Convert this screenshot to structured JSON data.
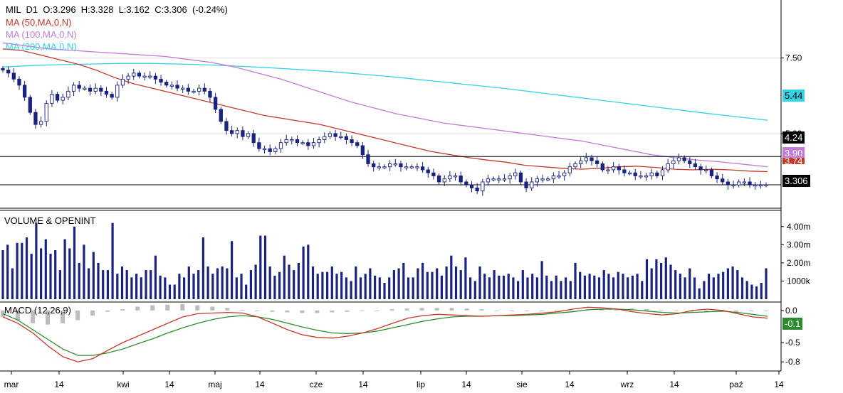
{
  "header": {
    "symbol": "MIL",
    "timeframe": "D1",
    "open": "O:3.296",
    "high": "H:3.328",
    "low": "L:3.162",
    "close": "C:3.306",
    "change": "(-0.24%)"
  },
  "indicators": [
    {
      "label": "MA (50,MA,0,N)",
      "color": "#c0392b"
    },
    {
      "label": "MA (100,MA,0,N)",
      "color": "#c27bd6"
    },
    {
      "label": "MA (200,MA,0,N)",
      "color": "#34d3e6"
    }
  ],
  "badges": {
    "ma200": "5.44",
    "hline_upper": "4.24",
    "ma100": "3.90",
    "ma50": "3.74",
    "last": "3.306",
    "macd": "-0.1"
  },
  "colors": {
    "candle": "#1a237e",
    "volume": "#1a237e",
    "ma50": "#c0392b",
    "ma100": "#c27bd6",
    "ma200": "#34d3e6",
    "macd": "#c0392b",
    "signal": "#2e8b2e",
    "hist": "#bdbdbd",
    "grid": "#e0e0e0"
  },
  "chart_data": {
    "type": "candlestick",
    "price_axis": {
      "ticks": [
        "7.50",
        "5.00"
      ],
      "ylim": [
        2.6,
        9.3
      ]
    },
    "volume_axis": {
      "ticks": [
        "4.00m",
        "3.00m",
        "2.00m",
        "1000k"
      ],
      "ylim": [
        0,
        4.5
      ]
    },
    "macd_axis": {
      "ticks": [
        "0.0",
        "-0.5",
        "-0.8"
      ],
      "ylim": [
        -0.92,
        0.12
      ]
    },
    "x_labels": [
      "mar",
      "14",
      "kwi",
      "14",
      "maj",
      "14",
      "cze",
      "14",
      "lip",
      "14",
      "sie",
      "14",
      "wrz",
      "14",
      "paź",
      "14"
    ],
    "horizontal_lines": [
      4.24,
      3.306
    ],
    "panels": {
      "volume_title": "VOLUME & OPENINT",
      "macd_title": "MACD (12,26,9)"
    },
    "close_series": [
      7.1,
      7.0,
      6.8,
      6.6,
      6.2,
      5.7,
      5.3,
      5.4,
      6.0,
      6.3,
      6.1,
      6.2,
      6.4,
      6.6,
      6.5,
      6.5,
      6.4,
      6.5,
      6.4,
      6.3,
      6.2,
      6.6,
      6.8,
      6.9,
      7.0,
      6.9,
      6.9,
      6.9,
      6.8,
      6.7,
      6.6,
      6.6,
      6.5,
      6.5,
      6.4,
      6.4,
      6.5,
      6.4,
      6.2,
      5.8,
      5.4,
      5.1,
      5.0,
      5.1,
      4.9,
      5.0,
      4.7,
      4.5,
      4.5,
      4.4,
      4.5,
      4.7,
      4.8,
      4.8,
      4.7,
      4.7,
      4.6,
      4.7,
      4.8,
      4.9,
      5.0,
      4.9,
      4.9,
      4.8,
      4.7,
      4.6,
      4.3,
      4.0,
      3.9,
      3.9,
      3.9,
      4.0,
      4.0,
      3.9,
      3.9,
      3.9,
      3.9,
      3.8,
      3.7,
      3.6,
      3.4,
      3.5,
      3.6,
      3.6,
      3.4,
      3.3,
      3.2,
      3.1,
      3.4,
      3.5,
      3.5,
      3.5,
      3.5,
      3.6,
      3.7,
      3.4,
      3.2,
      3.4,
      3.5,
      3.5,
      3.5,
      3.6,
      3.6,
      3.7,
      3.9,
      4.0,
      4.1,
      4.2,
      4.1,
      4.0,
      3.8,
      3.8,
      3.9,
      3.8,
      3.7,
      3.7,
      3.6,
      3.6,
      3.6,
      3.7,
      3.6,
      3.8,
      4.0,
      4.1,
      4.2,
      4.1,
      4.0,
      3.9,
      3.8,
      3.8,
      3.6,
      3.5,
      3.4,
      3.3,
      3.3,
      3.4,
      3.4,
      3.3,
      3.3,
      3.3,
      3.306
    ],
    "ma50_series": [
      7.8,
      7.75,
      7.6,
      7.45,
      7.3,
      7.1,
      6.85,
      6.65,
      6.5,
      6.35,
      6.2,
      6.05,
      5.9,
      5.75,
      5.6,
      5.5,
      5.4,
      5.3,
      5.15,
      5.0,
      4.85,
      4.7,
      4.55,
      4.4,
      4.3,
      4.2,
      4.12,
      4.05,
      3.95,
      3.9,
      3.85,
      3.82,
      3.85,
      3.9,
      3.92,
      3.88,
      3.82,
      3.8,
      3.82,
      3.8,
      3.76,
      3.74
    ],
    "ma100_series": [
      8.0,
      7.9,
      7.8,
      7.75,
      7.7,
      7.65,
      7.6,
      7.55,
      7.45,
      7.35,
      7.2,
      7.0,
      6.8,
      6.55,
      6.3,
      6.05,
      5.85,
      5.65,
      5.5,
      5.35,
      5.25,
      5.15,
      5.05,
      4.95,
      4.85,
      4.75,
      4.6,
      4.45,
      4.3,
      4.2,
      4.12,
      4.06,
      3.98,
      3.9
    ],
    "ma200_series": [
      7.2,
      7.25,
      7.28,
      7.3,
      7.32,
      7.32,
      7.3,
      7.27,
      7.23,
      7.18,
      7.12,
      7.06,
      6.98,
      6.9,
      6.8,
      6.7,
      6.6,
      6.5,
      6.38,
      6.26,
      6.14,
      6.02,
      5.9,
      5.78,
      5.66,
      5.55,
      5.44
    ],
    "volume_series": [
      2.7,
      3.0,
      1.7,
      3.1,
      3.1,
      3.4,
      2.5,
      4.2,
      2.8,
      3.3,
      2.5,
      2.7,
      1.6,
      3.3,
      2.8,
      4.0,
      2.0,
      3.0,
      1.7,
      2.6,
      2.0,
      1.6,
      1.6,
      4.2,
      1.4,
      1.8,
      1.6,
      1.2,
      1.4,
      1.2,
      1.6,
      1.6,
      2.4,
      1.3,
      1.2,
      0.8,
      0.8,
      1.4,
      1.2,
      1.8,
      1.4,
      1.6,
      3.4,
      1.8,
      1.4,
      1.7,
      1.8,
      1.7,
      3.2,
      1.2,
      1.4,
      0.8,
      1.6,
      1.9,
      3.5,
      3.5,
      1.8,
      1.3,
      1.5,
      2.4,
      1.9,
      1.6,
      2.0,
      2.9,
      3.0,
      1.8,
      1.4,
      1.5,
      1.5,
      1.8,
      1.4,
      1.5,
      1.2,
      1.0,
      1.8,
      1.2,
      1.4,
      1.7,
      1.3,
      1.2,
      0.9,
      1.2,
      1.6,
      1.7,
      2.0,
      1.2,
      1.2,
      1.7,
      2.0,
      1.5,
      1.5,
      1.7,
      1.3,
      1.8,
      2.4,
      1.8,
      1.6,
      2.3,
      1.2,
      1.0,
      1.8,
      1.4,
      1.2,
      1.6,
      1.3,
      1.3,
      1.4,
      1.2,
      1.0,
      1.6,
      1.2,
      1.4,
      1.2,
      2.1,
      1.3,
      1.0,
      1.3,
      1.0,
      1.2,
      1.0,
      2.0,
      1.5,
      1.3,
      1.4,
      1.3,
      1.2,
      1.6,
      1.4,
      1.2,
      1.5,
      1.4,
      1.2,
      1.3,
      1.4,
      1.0,
      2.2,
      1.7,
      2.2,
      2.0,
      2.3,
      1.9,
      1.6,
      1.4,
      1.2,
      1.7,
      1.2,
      0.6,
      1.0,
      1.4,
      1.2,
      1.4,
      1.5,
      1.7,
      1.8,
      1.6,
      1.2,
      1.0,
      0.8,
      0.7,
      0.9,
      1.7
    ],
    "macd_series": [
      -0.1,
      -0.2,
      -0.35,
      -0.55,
      -0.72,
      -0.8,
      -0.75,
      -0.62,
      -0.5,
      -0.4,
      -0.3,
      -0.2,
      -0.1,
      -0.05,
      -0.04,
      -0.03,
      -0.04,
      -0.1,
      -0.2,
      -0.3,
      -0.38,
      -0.42,
      -0.43,
      -0.4,
      -0.35,
      -0.28,
      -0.2,
      -0.12,
      -0.08,
      -0.06,
      -0.07,
      -0.08,
      -0.09,
      -0.08,
      -0.07,
      -0.06,
      -0.04,
      -0.02,
      0.02,
      0.05,
      0.04,
      0.02,
      -0.02,
      -0.05,
      -0.07,
      -0.05,
      0.0,
      0.02,
      0.0,
      -0.05,
      -0.1,
      -0.12
    ],
    "signal_series": [
      -0.05,
      -0.15,
      -0.3,
      -0.45,
      -0.6,
      -0.7,
      -0.7,
      -0.66,
      -0.6,
      -0.52,
      -0.44,
      -0.35,
      -0.27,
      -0.2,
      -0.14,
      -0.1,
      -0.08,
      -0.1,
      -0.14,
      -0.2,
      -0.26,
      -0.31,
      -0.35,
      -0.36,
      -0.35,
      -0.32,
      -0.27,
      -0.22,
      -0.17,
      -0.13,
      -0.1,
      -0.09,
      -0.09,
      -0.08,
      -0.08,
      -0.07,
      -0.06,
      -0.04,
      -0.02,
      0.01,
      0.02,
      0.02,
      0.01,
      -0.01,
      -0.03,
      -0.04,
      -0.03,
      -0.02,
      -0.01,
      -0.03,
      -0.06,
      -0.09
    ],
    "hist_series": [
      -0.1,
      -0.15,
      -0.2,
      -0.22,
      -0.2,
      -0.15,
      -0.08,
      -0.02,
      0.02,
      0.06,
      0.08,
      0.09,
      0.1,
      0.08,
      0.06,
      0.04,
      0.01,
      -0.01,
      -0.02,
      -0.03,
      -0.04,
      -0.04,
      -0.03,
      -0.02,
      -0.01,
      0.0,
      0.02,
      0.03,
      0.04,
      0.04,
      0.04,
      0.03,
      0.02,
      0.0,
      -0.01,
      -0.01,
      -0.01,
      -0.01,
      0.0,
      0.01,
      0.02,
      0.03,
      0.03,
      0.02,
      0.0,
      -0.01,
      -0.02,
      -0.02,
      -0.02,
      -0.02,
      -0.01,
      -0.01
    ]
  }
}
